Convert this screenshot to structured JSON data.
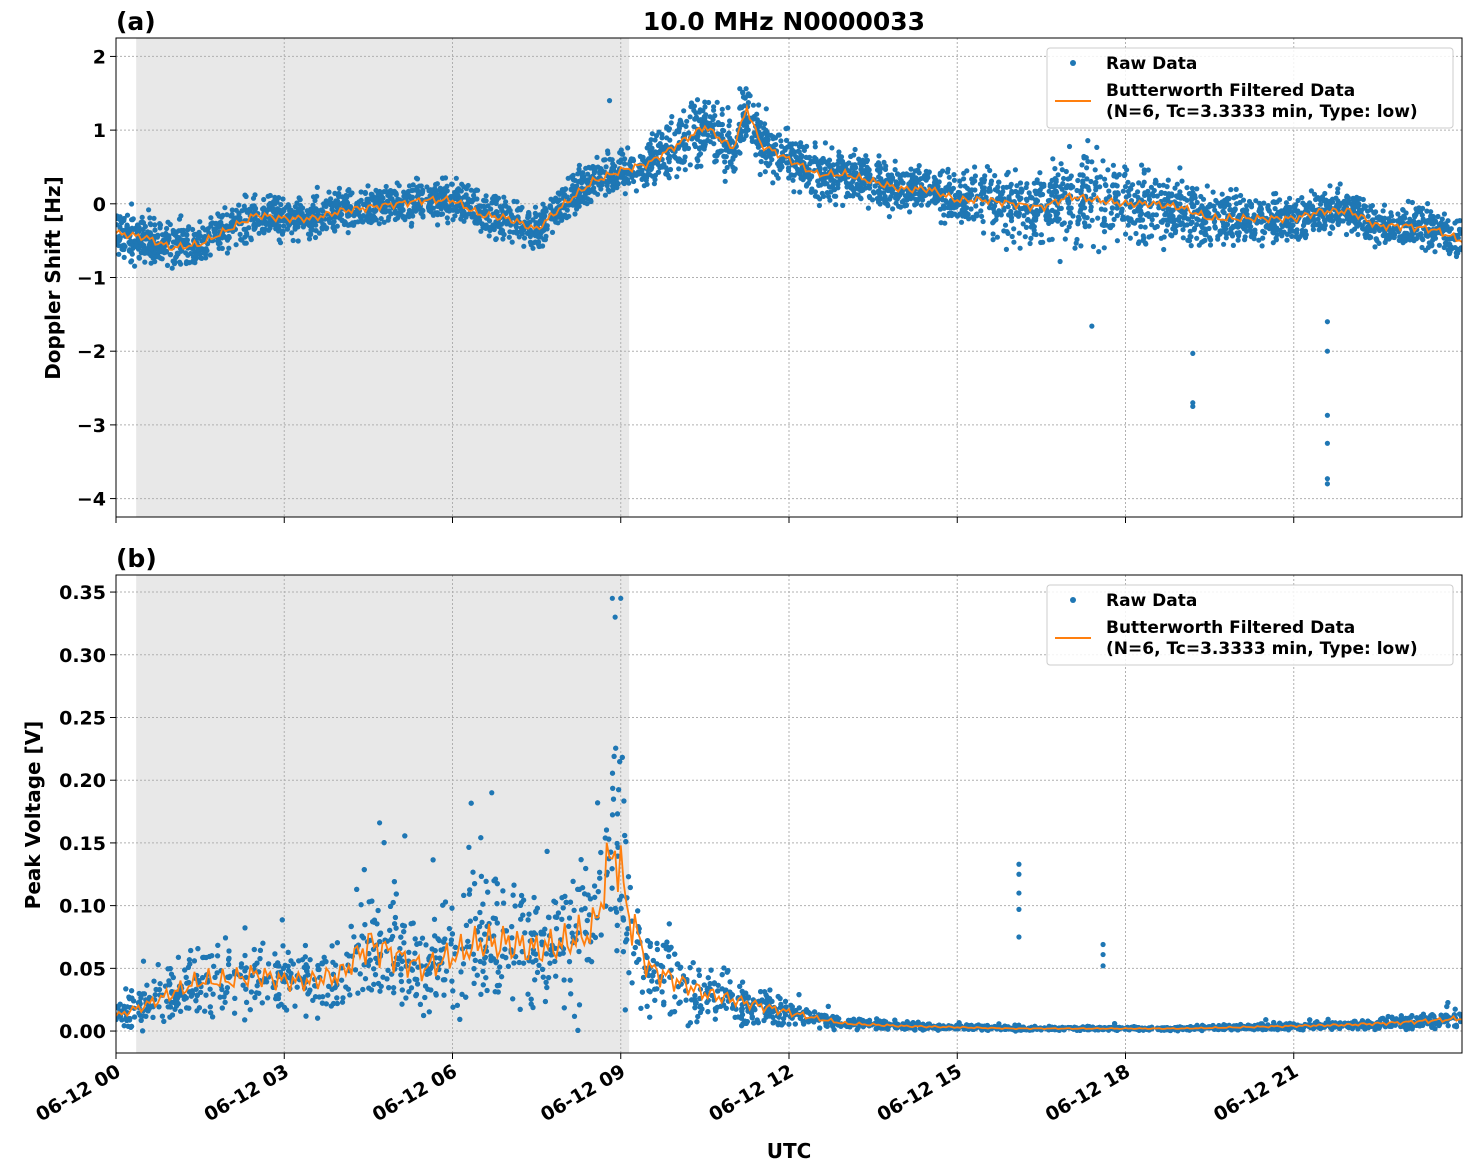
{
  "chart_data": [
    {
      "type": "scatter",
      "panel_label": "(a)",
      "title": "10.0 MHz N0000033",
      "xlabel": "",
      "ylabel": "Doppler Shift [Hz]",
      "xlim_hours": [
        0,
        24
      ],
      "ylim": [
        -4.25,
        2.25
      ],
      "yticks": [
        2,
        1,
        0,
        -1,
        -2,
        -3,
        -4
      ],
      "ytick_labels": [
        "2",
        "1",
        "0",
        "−1",
        "−2",
        "−3",
        "−4"
      ],
      "shaded_interval_hours": [
        0.36,
        9.15
      ],
      "grid": true,
      "legend_placement": "top-right",
      "legend": [
        "Raw Data",
        "Butterworth Filtered Data",
        "(N=6, Tc=3.3333 min, Type: low)"
      ],
      "colors": {
        "raw": "#1f77b4",
        "filtered": "#ff7f0e",
        "shade": "#e8e8e8"
      },
      "filtered": {
        "x_hours": [
          0,
          0.5,
          1,
          1.5,
          2,
          2.5,
          3,
          3.5,
          4,
          4.5,
          5,
          5.5,
          6,
          6.5,
          7,
          7.5,
          8,
          8.5,
          9,
          9.5,
          10,
          10.5,
          11,
          11.25,
          11.5,
          12,
          12.5,
          13,
          13.5,
          14,
          14.5,
          15,
          15.5,
          16,
          16.5,
          17,
          17.5,
          18,
          18.5,
          19,
          19.5,
          20,
          20.5,
          21,
          21.5,
          22,
          22.5,
          23,
          23.5,
          24
        ],
        "y": [
          -0.4,
          -0.45,
          -0.6,
          -0.55,
          -0.35,
          -0.15,
          -0.2,
          -0.2,
          -0.1,
          -0.05,
          0.0,
          0.05,
          0.05,
          -0.15,
          -0.2,
          -0.35,
          0.0,
          0.3,
          0.45,
          0.55,
          0.8,
          1.05,
          0.75,
          1.3,
          0.8,
          0.6,
          0.4,
          0.4,
          0.3,
          0.2,
          0.2,
          0.05,
          0.05,
          0.0,
          -0.05,
          0.1,
          0.05,
          0.0,
          0.0,
          -0.05,
          -0.2,
          -0.2,
          -0.2,
          -0.2,
          -0.1,
          -0.1,
          -0.3,
          -0.3,
          -0.35,
          -0.5
        ]
      },
      "raw_spread_hz": [
        0.35,
        0.35,
        0.35,
        0.35,
        0.3,
        0.3,
        0.3,
        0.3,
        0.3,
        0.3,
        0.3,
        0.3,
        0.3,
        0.3,
        0.3,
        0.3,
        0.3,
        0.3,
        0.3,
        0.35,
        0.45,
        0.5,
        0.45,
        0.45,
        0.4,
        0.35,
        0.35,
        0.35,
        0.35,
        0.3,
        0.3,
        0.35,
        0.45,
        0.55,
        0.6,
        0.65,
        0.65,
        0.6,
        0.55,
        0.5,
        0.4,
        0.35,
        0.3,
        0.3,
        0.3,
        0.3,
        0.3,
        0.3,
        0.3,
        0.3
      ],
      "raw_outliers": [
        {
          "x": 19.2,
          "y": -2.7
        },
        {
          "x": 19.2,
          "y": -2.75
        },
        {
          "x": 19.2,
          "y": -2.03
        },
        {
          "x": 21.6,
          "y": -3.8
        },
        {
          "x": 21.6,
          "y": -3.73
        },
        {
          "x": 21.6,
          "y": -3.25
        },
        {
          "x": 21.6,
          "y": -2.87
        },
        {
          "x": 21.6,
          "y": -2.0
        },
        {
          "x": 21.6,
          "y": -1.6
        },
        {
          "x": 17.4,
          "y": -1.66
        },
        {
          "x": 8.8,
          "y": 1.4
        }
      ]
    },
    {
      "type": "scatter",
      "panel_label": "(b)",
      "xlabel": "UTC",
      "ylabel": "Peak Voltage [V]",
      "xlim_hours": [
        0,
        24
      ],
      "ylim": [
        -0.0175,
        0.3636
      ],
      "yticks": [
        0.35,
        0.3,
        0.25,
        0.2,
        0.15,
        0.1,
        0.05,
        0.0
      ],
      "ytick_labels": [
        "0.35",
        "0.30",
        "0.25",
        "0.20",
        "0.15",
        "0.10",
        "0.05",
        "0.00"
      ],
      "xtick_hours": [
        0,
        3,
        6,
        9,
        12,
        15,
        18,
        21
      ],
      "xtick_labels": [
        "06-12 00",
        "06-12 03",
        "06-12 06",
        "06-12 09",
        "06-12 12",
        "06-12 15",
        "06-12 18",
        "06-12 21"
      ],
      "shaded_interval_hours": [
        0.36,
        9.15
      ],
      "grid": true,
      "legend_placement": "top-right",
      "legend": [
        "Raw Data",
        "Butterworth Filtered Data",
        "(N=6, Tc=3.3333 min, Type: low)"
      ],
      "colors": {
        "raw": "#1f77b4",
        "filtered": "#ff7f0e",
        "shade": "#e8e8e8"
      },
      "filtered": {
        "x_hours": [
          0,
          0.5,
          1,
          1.5,
          2,
          2.5,
          3,
          3.5,
          4,
          4.5,
          5,
          5.5,
          6,
          6.5,
          7,
          7.5,
          8,
          8.5,
          8.9,
          9.1,
          9.5,
          10,
          10.5,
          11,
          11.5,
          12,
          12.5,
          13,
          14,
          15,
          16,
          17,
          18,
          19,
          20,
          21,
          22,
          23,
          24
        ],
        "y": [
          0.012,
          0.02,
          0.03,
          0.04,
          0.04,
          0.045,
          0.04,
          0.04,
          0.045,
          0.07,
          0.06,
          0.05,
          0.06,
          0.07,
          0.07,
          0.065,
          0.07,
          0.08,
          0.15,
          0.1,
          0.05,
          0.04,
          0.03,
          0.025,
          0.02,
          0.015,
          0.01,
          0.006,
          0.004,
          0.003,
          0.002,
          0.002,
          0.002,
          0.002,
          0.003,
          0.004,
          0.005,
          0.007,
          0.01
        ]
      },
      "raw_outliers": [
        {
          "x": 8.85,
          "y": 0.345
        },
        {
          "x": 9.0,
          "y": 0.345
        },
        {
          "x": 8.9,
          "y": 0.33
        },
        {
          "x": 16.1,
          "y": 0.133
        },
        {
          "x": 16.1,
          "y": 0.125
        },
        {
          "x": 16.1,
          "y": 0.11
        },
        {
          "x": 16.1,
          "y": 0.097
        },
        {
          "x": 16.1,
          "y": 0.075
        },
        {
          "x": 17.6,
          "y": 0.069
        },
        {
          "x": 17.6,
          "y": 0.061
        },
        {
          "x": 17.6,
          "y": 0.052
        },
        {
          "x": 6.7,
          "y": 0.19
        },
        {
          "x": 4.7,
          "y": 0.166
        }
      ]
    }
  ]
}
